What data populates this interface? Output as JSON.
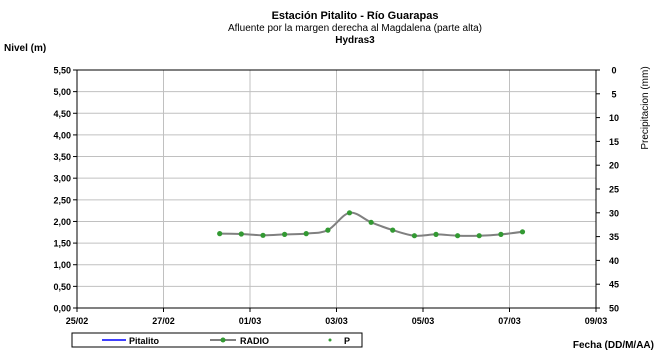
{
  "chart_data": {
    "type": "line",
    "title": "Estación Pitalito  - Río Guarapas",
    "subtitle": "Afluente por la margen derecha al Magdalena (parte alta)",
    "subtitle2": "Hydras3",
    "ylabel": "Nivel (m)",
    "y2label": "Precipitacion (mm)",
    "xlabel": "Fecha (DD/M/AA)",
    "x_ticks": [
      "25/02",
      "27/02",
      "01/03",
      "03/03",
      "05/03",
      "07/03",
      "09/03"
    ],
    "x_tick_days": [
      0,
      2,
      4,
      6,
      8,
      10,
      12
    ],
    "xlim_days": [
      0,
      12
    ],
    "ylim": [
      0,
      5.5
    ],
    "y_ticks": [
      "0,00",
      "0,50",
      "1,00",
      "1,50",
      "2,00",
      "2,50",
      "3,00",
      "3,50",
      "4,00",
      "4,50",
      "5,00",
      "5,50"
    ],
    "y2lim": [
      0,
      50
    ],
    "y2_ticks": [
      "0",
      "5",
      "10",
      "15",
      "20",
      "25",
      "30",
      "35",
      "40",
      "45",
      "50"
    ],
    "y2_inverted": true,
    "grid": true,
    "legend_position": "bottom",
    "legend": [
      "Pitalito",
      "RADIO",
      "P"
    ],
    "colors": {
      "pitalito": "#0000ff",
      "radio_line": "#808080",
      "radio_marker": "#339933",
      "p": "#339933"
    },
    "series": [
      {
        "name": "RADIO",
        "x_days": [
          3.3,
          3.8,
          4.3,
          4.8,
          5.3,
          5.8,
          6.3,
          6.8,
          7.3,
          7.8,
          8.3,
          8.8,
          9.3,
          9.8,
          10.3
        ],
        "y": [
          1.72,
          1.71,
          1.68,
          1.7,
          1.72,
          1.8,
          2.2,
          1.98,
          1.8,
          1.67,
          1.7,
          1.67,
          1.67,
          1.7,
          1.76
        ]
      }
    ]
  }
}
